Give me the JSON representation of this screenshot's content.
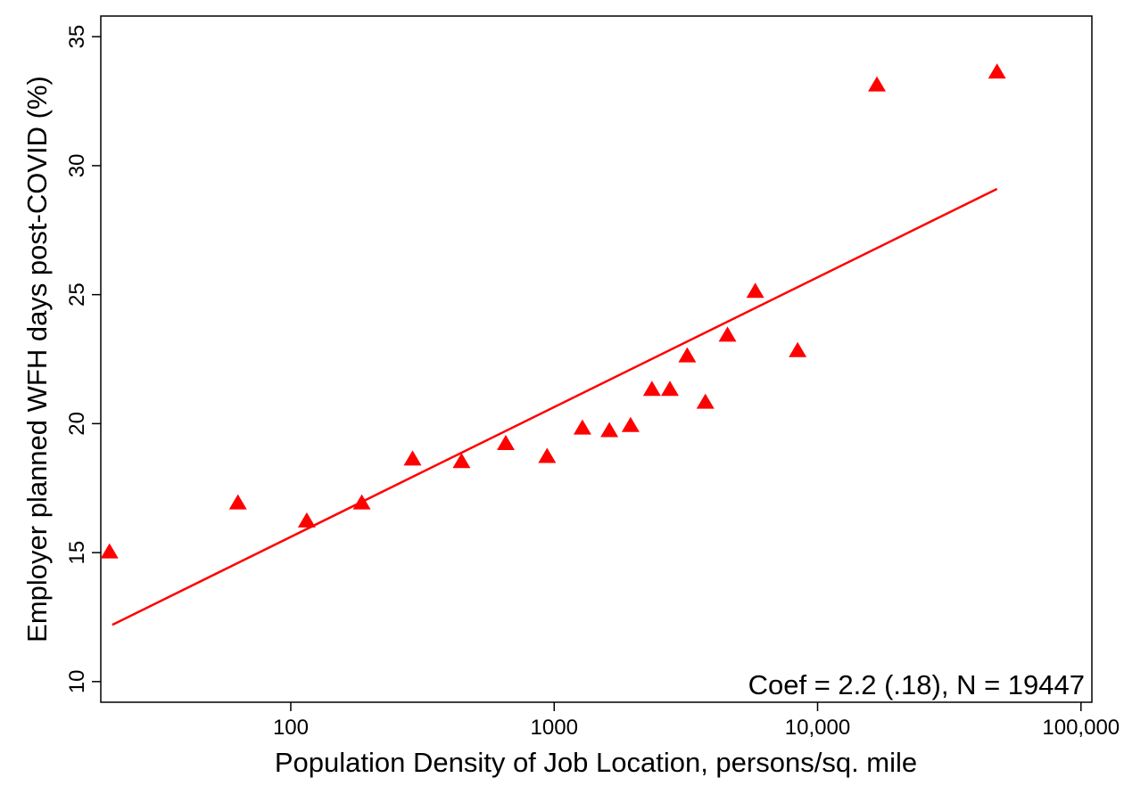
{
  "chart_data": {
    "type": "scatter",
    "title": "",
    "xlabel": "Population Density of Job Location, persons/sq. mile",
    "ylabel": "Employer planned WFH days post-COVID (%)",
    "x_scale": "log",
    "xlim": [
      19,
      110000
    ],
    "ylim": [
      9.2,
      35.8
    ],
    "x_ticks": [
      {
        "value": 100,
        "label": "100"
      },
      {
        "value": 1000,
        "label": "1000"
      },
      {
        "value": 10000,
        "label": "10,000"
      },
      {
        "value": 100000,
        "label": "100,000"
      }
    ],
    "y_ticks": [
      {
        "value": 10,
        "label": "10"
      },
      {
        "value": 15,
        "label": "15"
      },
      {
        "value": 20,
        "label": "20"
      },
      {
        "value": 25,
        "label": "25"
      },
      {
        "value": 30,
        "label": "30"
      },
      {
        "value": 35,
        "label": "35"
      }
    ],
    "grid": false,
    "marker_color": "#ff0000",
    "fit_line_color": "#ff0000",
    "series": [
      {
        "points": [
          {
            "x": 20.5,
            "y": 15.0
          },
          {
            "x": 63,
            "y": 16.9
          },
          {
            "x": 115,
            "y": 16.2
          },
          {
            "x": 186,
            "y": 16.9
          },
          {
            "x": 290,
            "y": 18.6
          },
          {
            "x": 445,
            "y": 18.5
          },
          {
            "x": 655,
            "y": 19.2
          },
          {
            "x": 940,
            "y": 18.7
          },
          {
            "x": 1280,
            "y": 19.8
          },
          {
            "x": 1620,
            "y": 19.7
          },
          {
            "x": 1950,
            "y": 19.9
          },
          {
            "x": 2350,
            "y": 21.3
          },
          {
            "x": 2750,
            "y": 21.3
          },
          {
            "x": 3200,
            "y": 22.6
          },
          {
            "x": 3750,
            "y": 20.8
          },
          {
            "x": 4550,
            "y": 23.4
          },
          {
            "x": 5800,
            "y": 25.1
          },
          {
            "x": 8400,
            "y": 22.8
          },
          {
            "x": 16800,
            "y": 33.1
          },
          {
            "x": 48000,
            "y": 33.6
          }
        ]
      }
    ],
    "fit_line": {
      "x": [
        21,
        48000
      ],
      "y": [
        12.2,
        29.1
      ]
    },
    "annotation": {
      "text": "Coef = 2.2 (.18),  N = 19447",
      "position": "bottom-right"
    }
  }
}
